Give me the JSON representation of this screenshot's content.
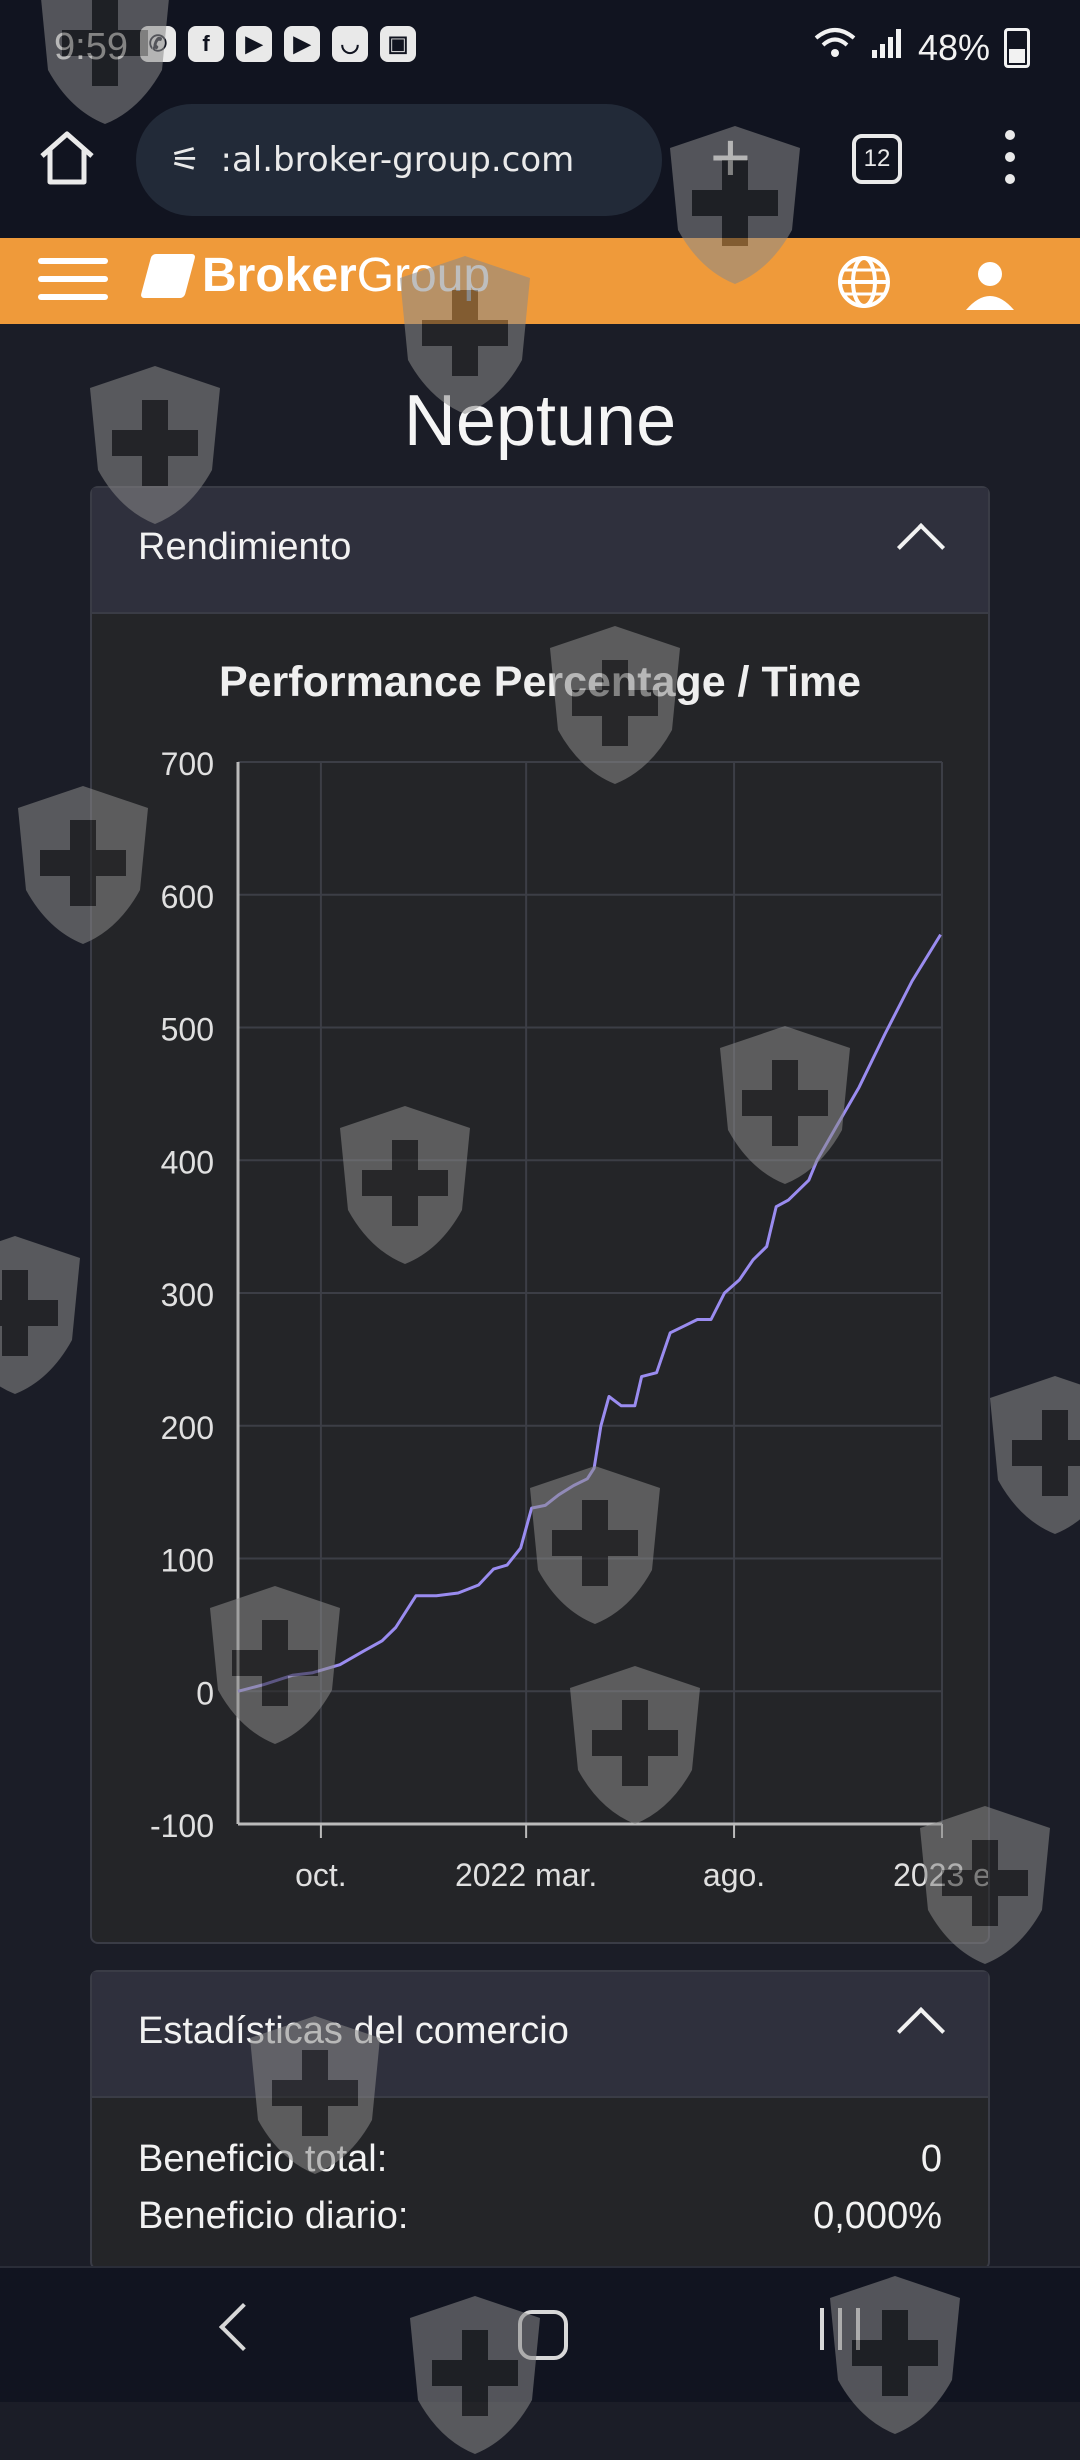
{
  "status": {
    "time": "9:59",
    "battery": "48%",
    "notification_icons": [
      "whatsapp-icon",
      "facebook-icon",
      "youtube-icon",
      "youtube-icon",
      "smile-icon",
      "image-icon"
    ]
  },
  "browser": {
    "url": ":al.broker-group.com",
    "tab_count": "12"
  },
  "site": {
    "logo_bold": "Broker",
    "logo_light": "Group"
  },
  "page": {
    "title": "Neptune"
  },
  "panels": {
    "performance": {
      "label": "Rendimiento"
    },
    "stats": {
      "label": "Estadísticas del comercio",
      "rows": [
        {
          "label": "Beneficio total:",
          "value": "0"
        },
        {
          "label": "Beneficio diario:",
          "value": "0,000%"
        }
      ]
    }
  },
  "chart_data": {
    "type": "line",
    "title": "Performance Percentage / Time",
    "xlabel": "",
    "ylabel": "",
    "ylim": [
      -100,
      700
    ],
    "y_ticks": [
      700,
      600,
      500,
      400,
      300,
      200,
      100,
      0,
      -100
    ],
    "x_ticks": [
      "oct.",
      "2022 mar.",
      "ago.",
      "2023 e"
    ],
    "grid": true,
    "colors": {
      "line": "#9a8cf0",
      "grid": "#3c3e46",
      "axis": "#bbbbbb"
    },
    "x_range": [
      "2021-08-01",
      "2023-01-01"
    ],
    "series": [
      {
        "x": [
          "2021-08-01",
          "2021-08-20",
          "2021-09-10",
          "2021-09-25",
          "2021-10-15",
          "2021-11-01",
          "2021-11-15",
          "2021-11-25",
          "2021-12-10",
          "2021-12-25",
          "2022-01-10",
          "2022-01-25",
          "2022-02-05",
          "2022-02-15",
          "2022-02-25",
          "2022-03-05",
          "2022-03-15",
          "2022-03-25",
          "2022-04-05",
          "2022-04-15",
          "2022-04-20",
          "2022-04-25",
          "2022-05-01",
          "2022-05-10",
          "2022-05-20",
          "2022-05-25",
          "2022-06-05",
          "2022-06-15",
          "2022-06-25",
          "2022-07-05",
          "2022-07-15",
          "2022-07-25",
          "2022-08-05",
          "2022-08-15",
          "2022-08-25",
          "2022-09-01",
          "2022-09-10",
          "2022-09-15",
          "2022-09-25",
          "2022-10-01",
          "2022-10-15",
          "2022-11-01",
          "2022-11-20",
          "2022-12-10",
          "2022-12-31"
        ],
        "y": [
          0,
          5,
          12,
          14,
          20,
          30,
          38,
          48,
          72,
          72,
          74,
          80,
          92,
          95,
          108,
          138,
          140,
          148,
          155,
          160,
          168,
          200,
          222,
          215,
          215,
          237,
          240,
          270,
          275,
          280,
          280,
          300,
          310,
          325,
          335,
          365,
          370,
          375,
          385,
          400,
          425,
          455,
          495,
          535,
          570
        ]
      }
    ]
  }
}
